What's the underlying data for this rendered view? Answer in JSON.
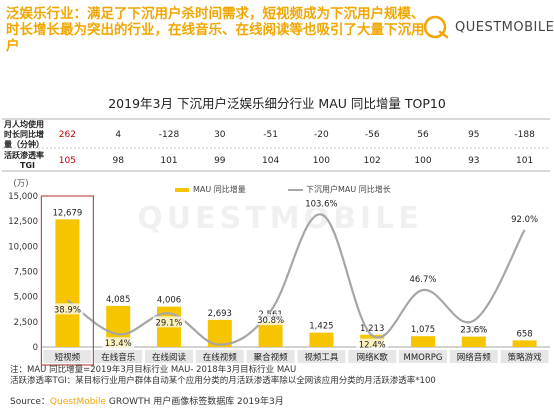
{
  "header": {
    "headline": "泛娱乐行业：满足了下沉用户杀时间需求，短视频成为下沉用户规模、时长增长最为突出的行业，在线音乐、在线阅读等也吸引了大量下沉用户",
    "logo_text": "QUESTMOBILE",
    "watermark": "QUESTMOBILE"
  },
  "colors": {
    "accent": "#f2a600",
    "bar": "#f7c400",
    "line": "#a6a6a6",
    "highlight_box": "#c0504d",
    "table_red": "#c00000"
  },
  "chart_data": {
    "type": "bar",
    "title": "2019年3月 下沉用户泛娱乐细分行业 MAU 同比增量 TOP10",
    "categories": [
      "短视频",
      "在线音乐",
      "在线阅读",
      "在线视频",
      "聚合视频",
      "视频工具",
      "网络K歌",
      "MMORPG",
      "网络音频",
      "策略游戏"
    ],
    "series": [
      {
        "name": "MAU 同比增量",
        "type": "bar",
        "axis": "left",
        "values": [
          12679,
          4085,
          4006,
          2693,
          2561,
          1425,
          1213,
          1075,
          1030,
          658
        ]
      },
      {
        "name": "下沉用户MAU 同比增长",
        "type": "line",
        "axis": "none",
        "values": [
          38.9,
          13.4,
          29.1,
          5.5,
          30.8,
          103.6,
          12.4,
          46.7,
          23.6,
          92.0
        ],
        "labels": [
          "38.9%",
          "13.4%",
          "29.1%",
          "5.5%",
          "30.8%",
          "103.6%",
          "12.4%",
          "46.7%",
          "23.6%",
          "92.0%"
        ]
      }
    ],
    "y_unit": "(万)",
    "ylim": [
      0,
      15000
    ],
    "yticks": [
      "0",
      "2,500",
      "5,000",
      "7,500",
      "10,000",
      "12,500",
      "15,000"
    ],
    "bar_labels": [
      "12,679",
      "4,085",
      "4,006",
      "2,693",
      "2,561",
      "1,425",
      "1,213",
      "1,075",
      "1,030",
      "658"
    ],
    "highlighted_category": "短视频",
    "grid": false,
    "legend_position": "top"
  },
  "table": {
    "rows": [
      {
        "label": "月人均使用时长同比增量（分钟）",
        "values": [
          "262",
          "4",
          "-128",
          "30",
          "-51",
          "-20",
          "-56",
          "56",
          "95",
          "-188"
        ]
      },
      {
        "label": "活跃渗透率TGI",
        "values": [
          "105",
          "98",
          "101",
          "99",
          "104",
          "100",
          "102",
          "100",
          "93",
          "101"
        ]
      }
    ]
  },
  "footer": {
    "note1": "注：MAU 同比增量=2019年3月目标行业 MAU- 2018年3月目标行业 MAU",
    "note2": "活跃渗透率TGI：某目标行业用户群体自动某个应用分类的月活跃渗透率除以全网该应用分类的月活跃渗透率*100",
    "source_prefix": "Source：",
    "source_brand": "QuestMobile",
    "source_rest": " GROWTH 用户画像标签数据库 2019年3月"
  }
}
